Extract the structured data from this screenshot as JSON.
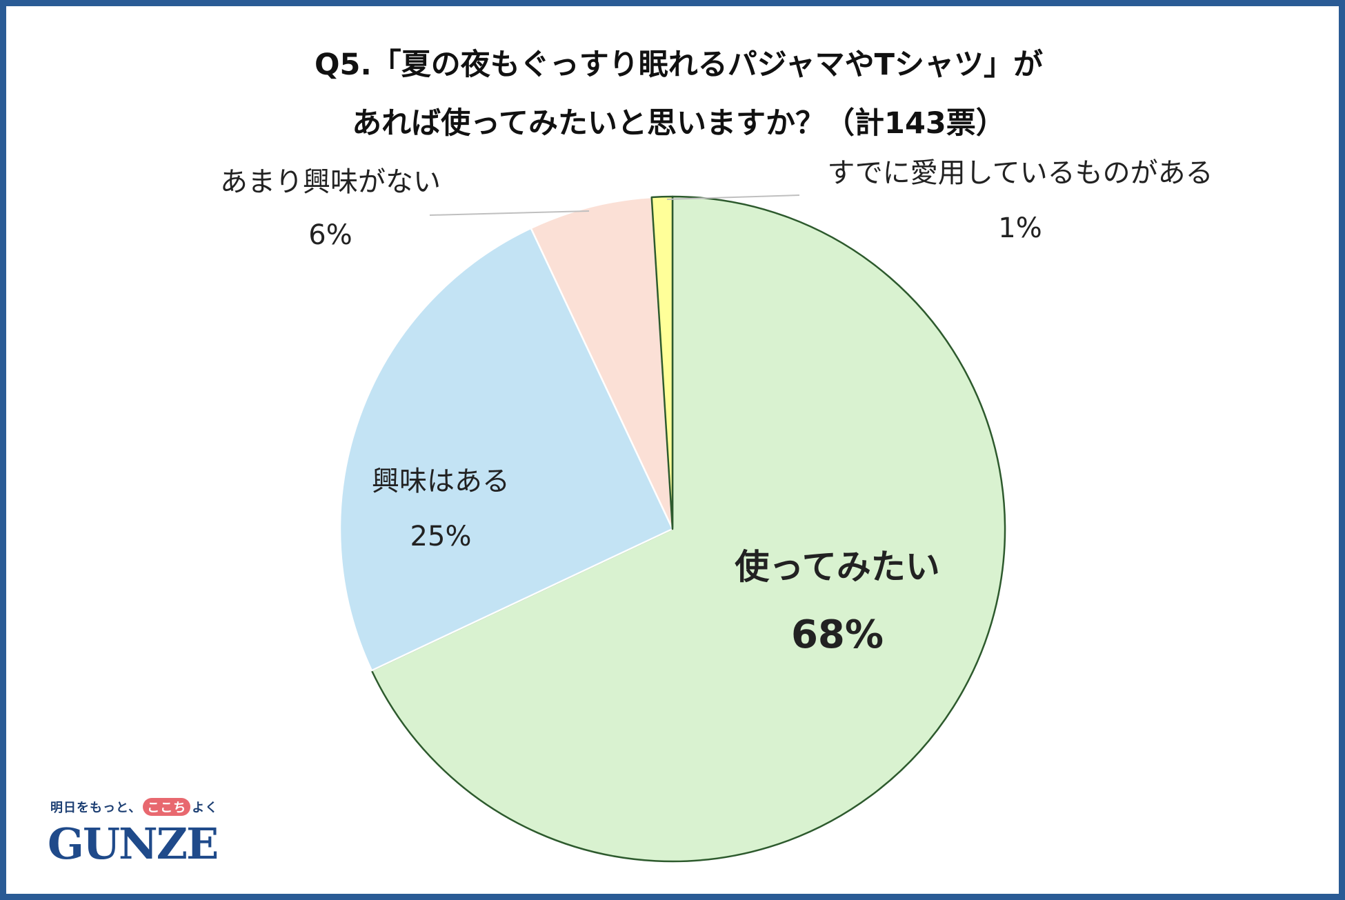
{
  "title": {
    "line1": "Q5.「夏の夜もぐっすり眠れるパジャマやTシャツ」が",
    "line2": "あれば使ってみたいと思いますか？（計143票）"
  },
  "logo": {
    "tagline_before": "明日をもっと、",
    "tagline_highlight": "ここち",
    "tagline_after": "よく",
    "brand": "GUNZE"
  },
  "colors": {
    "frame": "#2a5b95",
    "slice_stroke": "#ffffff"
  },
  "chart_data": {
    "type": "pie",
    "title": "Q5.「夏の夜もぐっすり眠れるパジャマやTシャツ」があれば使ってみたいと思いますか？（計143票）",
    "start": "12 o'clock, clockwise",
    "slices": [
      {
        "label": "使ってみたい",
        "value": 68,
        "percent_label": "68%",
        "color": "#d9f2d0",
        "outline": "#2d5a2d",
        "label_style": "bold-inside"
      },
      {
        "label": "興味はある",
        "value": 25,
        "percent_label": "25%",
        "color": "#c3e3f4",
        "outline": "#ffffff",
        "label_style": "inside"
      },
      {
        "label": "あまり興味がない",
        "value": 6,
        "percent_label": "6%",
        "color": "#fbe0d6",
        "outline": "#ffffff",
        "label_style": "outside-left"
      },
      {
        "label": "すでに愛用しているものがある",
        "value": 1,
        "percent_label": "1%",
        "color": "#ffff99",
        "outline": "#2d5a2d",
        "label_style": "outside-right"
      }
    ]
  }
}
